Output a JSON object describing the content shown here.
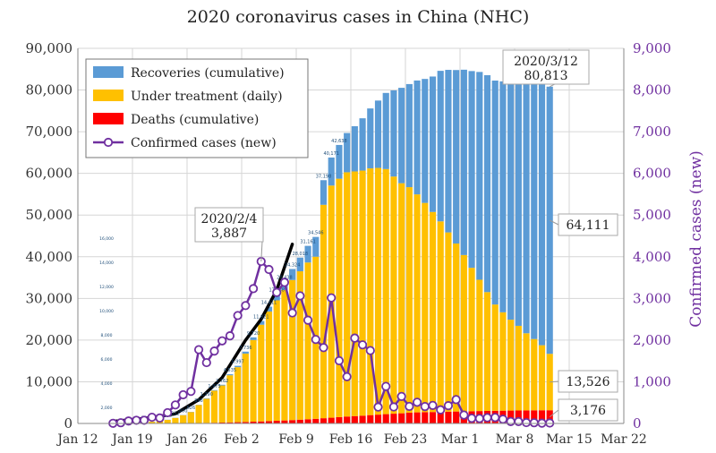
{
  "chart_data": {
    "type": "bar",
    "title": "2020 coronavirus cases in China (NHC)",
    "ylabel_left": "",
    "ylabel_right": "Confirmed cases (new)",
    "ylim_left": [
      0,
      90000
    ],
    "ylim_right": [
      0,
      9000
    ],
    "yticks_left": [
      "0",
      "10,000",
      "20,000",
      "30,000",
      "40,000",
      "50,000",
      "60,000",
      "70,000",
      "80,000",
      "90,000"
    ],
    "yticks_right": [
      "0",
      "1,000",
      "2,000",
      "3,000",
      "4,000",
      "5,000",
      "6,000",
      "7,000",
      "8,000",
      "9,000"
    ],
    "xticks": [
      "Jan 12",
      "Jan 19",
      "Jan 26",
      "Feb 2",
      "Feb 9",
      "Feb 16",
      "Feb 23",
      "Mar 1",
      "Mar 8",
      "Mar 15",
      "Mar 22"
    ],
    "x_start": "2020-01-12",
    "x_end": "2020-03-22",
    "grid": true,
    "legend_position": "top-left",
    "legend": [
      {
        "name": "Recoveries (cumulative)",
        "color": "#5b9bd5",
        "kind": "bar"
      },
      {
        "name": "Under treatment (daily)",
        "color": "#ffc000",
        "kind": "bar"
      },
      {
        "name": "Deaths (cumulative)",
        "color": "#ff0000",
        "kind": "bar"
      },
      {
        "name": "Confirmed cases (new)",
        "color": "#7030a0",
        "kind": "line"
      }
    ],
    "dates": [
      "Jan 12",
      "Jan 13",
      "Jan 14",
      "Jan 15",
      "Jan 16",
      "Jan 17",
      "Jan 18",
      "Jan 19",
      "Jan 20",
      "Jan 21",
      "Jan 22",
      "Jan 23",
      "Jan 24",
      "Jan 25",
      "Jan 26",
      "Jan 27",
      "Jan 28",
      "Jan 29",
      "Jan 30",
      "Jan 31",
      "Feb 1",
      "Feb 2",
      "Feb 3",
      "Feb 4",
      "Feb 5",
      "Feb 6",
      "Feb 7",
      "Feb 8",
      "Feb 9",
      "Feb 10",
      "Feb 11",
      "Feb 12",
      "Feb 13",
      "Feb 14",
      "Feb 15",
      "Feb 16",
      "Feb 17",
      "Feb 18",
      "Feb 19",
      "Feb 20",
      "Feb 21",
      "Feb 22",
      "Feb 23",
      "Feb 24",
      "Feb 25",
      "Feb 26",
      "Feb 27",
      "Feb 28",
      "Feb 29",
      "Mar 1",
      "Mar 2",
      "Mar 3",
      "Mar 4",
      "Mar 5",
      "Mar 6",
      "Mar 7",
      "Mar 8",
      "Mar 9",
      "Mar 10",
      "Mar 11",
      "Mar 12"
    ],
    "deaths": [
      1,
      1,
      1,
      2,
      2,
      2,
      3,
      4,
      6,
      9,
      17,
      25,
      41,
      56,
      80,
      106,
      132,
      170,
      213,
      259,
      304,
      361,
      425,
      490,
      563,
      636,
      722,
      811,
      908,
      1016,
      1113,
      1259,
      1380,
      1523,
      1665,
      1770,
      1868,
      2004,
      2118,
      2236,
      2345,
      2442,
      2592,
      2663,
      2715,
      2744,
      2788,
      2835,
      2870,
      2912,
      2943,
      2981,
      3012,
      3042,
      3070,
      3097,
      3119,
      3136,
      3158,
      3169,
      3176
    ],
    "under_treatment": [
      40,
      40,
      40,
      40,
      40,
      60,
      120,
      190,
      280,
      400,
      530,
      830,
      1290,
      1930,
      2660,
      4320,
      5800,
      7700,
      8900,
      11300,
      13200,
      16400,
      19600,
      23200,
      26300,
      28900,
      31300,
      33600,
      35600,
      37600,
      38900,
      51200,
      55700,
      57200,
      58600,
      58700,
      58800,
      59200,
      59200,
      58800,
      56900,
      55200,
      54100,
      52300,
      50200,
      48000,
      45700,
      43000,
      40300,
      37500,
      34400,
      31500,
      28500,
      25500,
      23600,
      21800,
      20300,
      18500,
      17100,
      15600,
      13526
    ],
    "recoveries": [
      0,
      0,
      0,
      0,
      0,
      1,
      5,
      10,
      25,
      25,
      34,
      34,
      38,
      49,
      51,
      60,
      103,
      124,
      171,
      243,
      328,
      475,
      632,
      892,
      1153,
      1540,
      2050,
      2649,
      3281,
      3996,
      4740,
      5911,
      6723,
      8096,
      9419,
      10844,
      12552,
      14376,
      16155,
      18264,
      20659,
      22888,
      24734,
      27323,
      29745,
      32495,
      36117,
      39002,
      41625,
      44462,
      47204,
      49856,
      52045,
      53726,
      55404,
      57065,
      58600,
      59897,
      61475,
      62793,
      64111
    ],
    "new_cases": [
      41,
      0,
      0,
      0,
      4,
      17,
      59,
      77,
      77,
      149,
      131,
      259,
      444,
      688,
      769,
      1771,
      1459,
      1737,
      1982,
      2102,
      2590,
      2829,
      3235,
      3887,
      3694,
      3143,
      3385,
      2652,
      3062,
      2478,
      2015,
      1820,
      3014,
      1505,
      1121,
      2048,
      1886,
      1749,
      394,
      889,
      397,
      648,
      409,
      508,
      406,
      433,
      327,
      427,
      573,
      202,
      125,
      119,
      139,
      143,
      102,
      46,
      45,
      20,
      17,
      8,
      11
    ],
    "manual_trend_x": [
      "Jan 16",
      "Jan 20",
      "Jan 24",
      "Jan 27",
      "Jan 30",
      "Feb 2",
      "Feb 4",
      "Feb 6",
      "Feb 8"
    ],
    "manual_trend_y": [
      500,
      1200,
      2300,
      5700,
      11000,
      20000,
      25000,
      32000,
      43000
    ],
    "manual_labels": [
      "20",
      "60",
      "154",
      "230",
      "322",
      "400",
      "626",
      "898",
      "1,290",
      "1,975",
      "2,762",
      "4,535",
      "5,997",
      "7,736",
      "9,720",
      "11,821",
      "14,411",
      "17,238",
      "20,438",
      "24,324",
      "28,018",
      "31,161",
      "34,546",
      "37,198",
      "40,171",
      "42,638"
    ],
    "manual_axis_ticks": [
      "2,000",
      "4,000",
      "6,000",
      "8,000",
      "10,000",
      "12,000",
      "14,000",
      "16,000"
    ],
    "callouts": [
      {
        "text": [
          "2020/3/12",
          "80,813"
        ]
      },
      {
        "text": [
          "2020/2/4",
          "3,887"
        ]
      },
      {
        "text": [
          "64,111"
        ]
      },
      {
        "text": [
          "13,526"
        ]
      },
      {
        "text": [
          "3,176"
        ]
      }
    ]
  }
}
